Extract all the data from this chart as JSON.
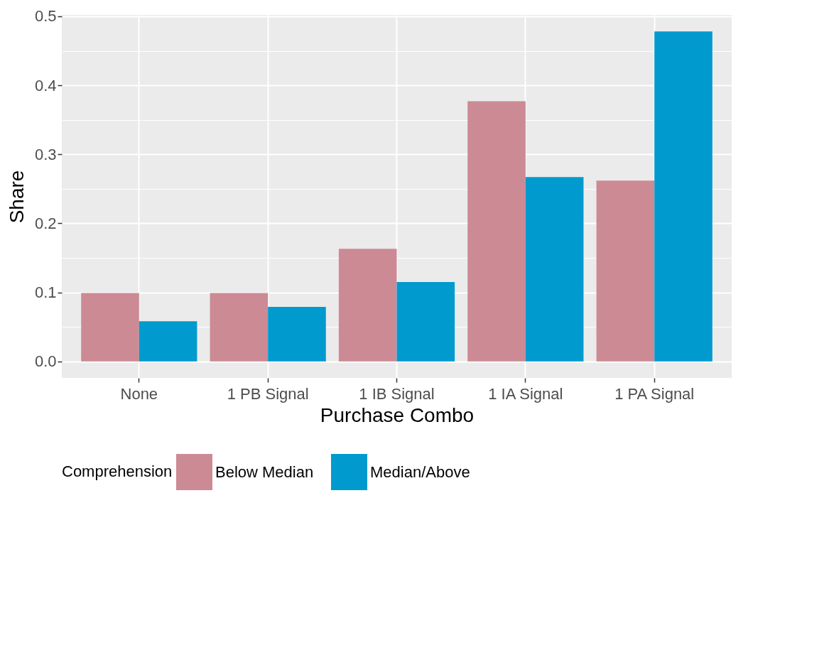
{
  "chart_data": {
    "type": "bar",
    "xlabel": "Purchase Combo",
    "ylabel": "Share",
    "legend_title": "Comprehension",
    "categories": [
      "None",
      "1 PB Signal",
      "1 IB Signal",
      "1 IA Signal",
      "1 PA Signal"
    ],
    "series": [
      {
        "name": "Below Median",
        "color": "#cc8a94",
        "values": [
          0.099,
          0.099,
          0.163,
          0.377,
          0.262
        ]
      },
      {
        "name": "Median/Above",
        "color": "#009ace",
        "values": [
          0.058,
          0.079,
          0.115,
          0.267,
          0.478
        ]
      }
    ],
    "ylim": [
      -0.024,
      0.502
    ],
    "yticks": [
      {
        "value": 0,
        "label": "0.0"
      },
      {
        "value": 0.05,
        "label": null
      },
      0.1,
      {
        "value": 0.15,
        "label": null
      },
      0.2,
      {
        "value": 0.25,
        "label": null
      },
      0.3,
      {
        "value": 0.35,
        "label": null
      },
      0.4,
      {
        "value": 0.45,
        "label": null
      },
      0.5
    ],
    "grid": true,
    "legend": "bottom"
  }
}
